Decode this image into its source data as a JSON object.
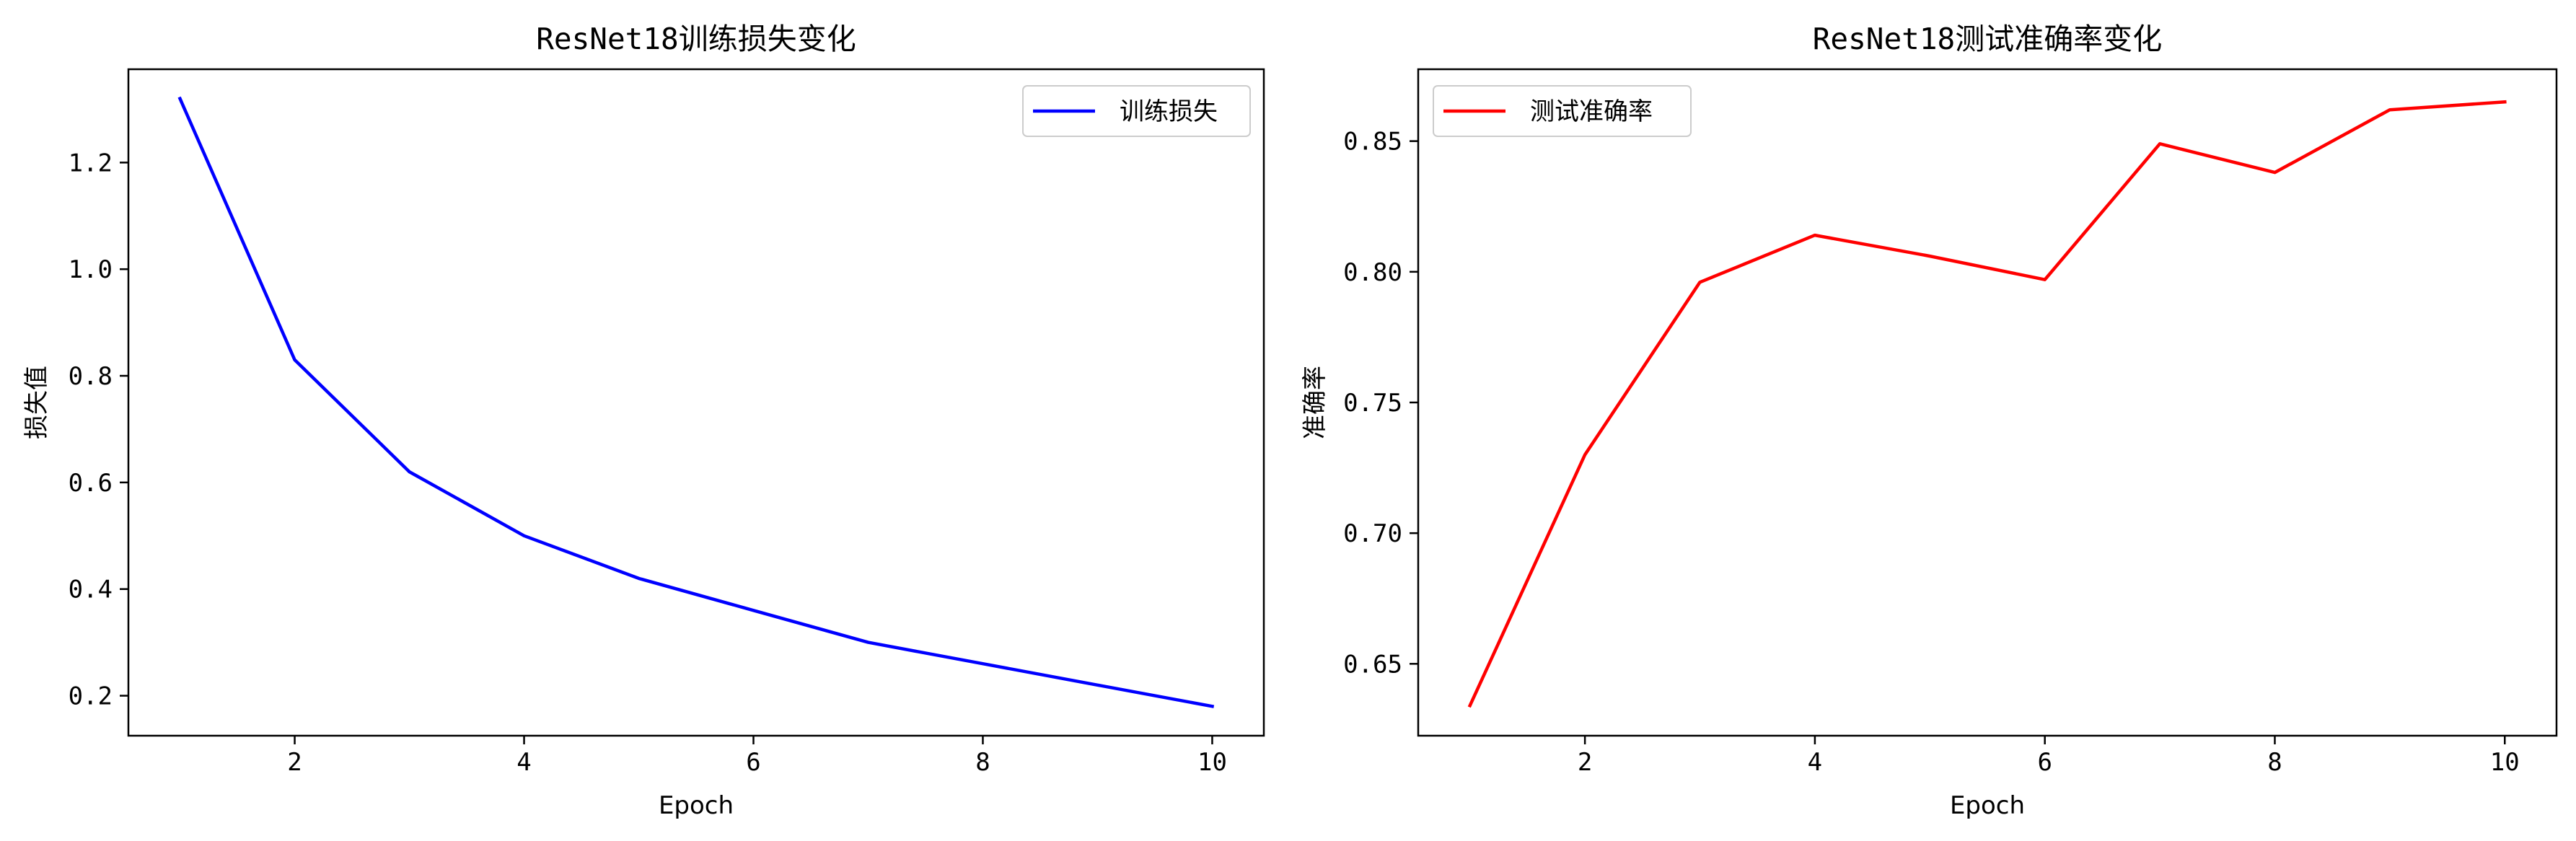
{
  "chart_data": [
    {
      "type": "line",
      "title": "ResNet18训练损失变化",
      "xlabel": "Epoch",
      "ylabel": "损失值",
      "x": [
        1,
        2,
        3,
        4,
        5,
        6,
        7,
        8,
        9,
        10
      ],
      "xlim": [
        0.55,
        10.45
      ],
      "ylim": [
        0.125,
        1.375
      ],
      "xticks": [
        2,
        4,
        6,
        8,
        10
      ],
      "yticks": [
        0.2,
        0.4,
        0.6,
        0.8,
        1.0,
        1.2
      ],
      "ytick_decimals": 1,
      "legend_position": "upper right",
      "grid": false,
      "series": [
        {
          "name": "训练损失",
          "color": "#0000ff",
          "values": [
            1.32,
            0.83,
            0.62,
            0.5,
            0.42,
            0.36,
            0.3,
            0.26,
            0.22,
            0.18
          ]
        }
      ]
    },
    {
      "type": "line",
      "title": "ResNet18测试准确率变化",
      "xlabel": "Epoch",
      "ylabel": "准确率",
      "x": [
        1,
        2,
        3,
        4,
        5,
        6,
        7,
        8,
        9,
        10
      ],
      "xlim": [
        0.55,
        10.45
      ],
      "ylim": [
        0.6225,
        0.8775
      ],
      "xticks": [
        2,
        4,
        6,
        8,
        10
      ],
      "yticks": [
        0.65,
        0.7,
        0.75,
        0.8,
        0.85
      ],
      "ytick_decimals": 2,
      "legend_position": "upper left",
      "grid": false,
      "series": [
        {
          "name": "测试准确率",
          "color": "#ff0000",
          "values": [
            0.634,
            0.73,
            0.796,
            0.814,
            0.806,
            0.797,
            0.849,
            0.838,
            0.862,
            0.865
          ]
        }
      ]
    }
  ]
}
